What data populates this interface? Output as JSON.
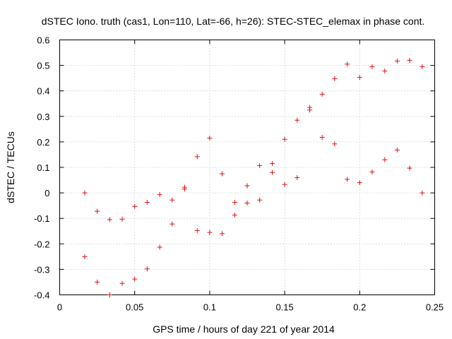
{
  "chart_data": {
    "type": "scatter",
    "title": "dSTEC Iono. truth (cas1, Lon=110, Lat=-66, h=26): STEC-STEC_elemax in phase cont.",
    "xlabel": "GPS time / hours of day 221 of year 2014",
    "ylabel": "dSTEC  / TECUs",
    "xlim": [
      0,
      0.25
    ],
    "ylim": [
      -0.4,
      0.6
    ],
    "xticks": [
      0,
      0.05,
      0.1,
      0.15,
      0.2,
      0.25
    ],
    "xtick_labels": [
      "0",
      "0.05",
      "0.1",
      "0.15",
      "0.2",
      "0.25"
    ],
    "yticks": [
      -0.4,
      -0.3,
      -0.2,
      -0.1,
      0,
      0.1,
      0.2,
      0.3,
      0.4,
      0.5,
      0.6
    ],
    "ytick_labels": [
      "-0.4",
      "-0.3",
      "-0.2",
      "-0.1",
      "0",
      "0.1",
      "0.2",
      "0.3",
      "0.4",
      "0.5",
      "0.6"
    ],
    "grid": true,
    "marker": "+",
    "marker_color": "#e01010",
    "points": [
      [
        0.0167,
        0.0
      ],
      [
        0.025,
        -0.072
      ],
      [
        0.0333,
        -0.105
      ],
      [
        0.0417,
        -0.103
      ],
      [
        0.05,
        -0.053
      ],
      [
        0.0583,
        -0.037
      ],
      [
        0.0667,
        -0.007
      ],
      [
        0.075,
        -0.028
      ],
      [
        0.0833,
        0.022
      ],
      [
        0.0833,
        0.015
      ],
      [
        0.0917,
        0.142
      ],
      [
        0.1,
        0.215
      ],
      [
        0.1083,
        0.075
      ],
      [
        0.1167,
        -0.037
      ],
      [
        0.125,
        0.028
      ],
      [
        0.1333,
        0.107
      ],
      [
        0.1417,
        0.115
      ],
      [
        0.15,
        0.21
      ],
      [
        0.1583,
        0.285
      ],
      [
        0.1667,
        0.335
      ],
      [
        0.1667,
        0.325
      ],
      [
        0.175,
        0.387
      ],
      [
        0.1833,
        0.448
      ],
      [
        0.1917,
        0.505
      ],
      [
        0.2,
        0.453
      ],
      [
        0.2083,
        0.495
      ],
      [
        0.2167,
        0.478
      ],
      [
        0.225,
        0.517
      ],
      [
        0.2333,
        0.52
      ],
      [
        0.2417,
        0.495
      ],
      [
        0.0167,
        -0.25
      ],
      [
        0.025,
        -0.35
      ],
      [
        0.0333,
        -0.4
      ],
      [
        0.0417,
        -0.355
      ],
      [
        0.05,
        -0.338
      ],
      [
        0.0583,
        -0.298
      ],
      [
        0.0667,
        -0.213
      ],
      [
        0.075,
        -0.122
      ],
      [
        0.0917,
        -0.148
      ],
      [
        0.1,
        -0.155
      ],
      [
        0.1083,
        -0.16
      ],
      [
        0.1167,
        -0.087
      ],
      [
        0.125,
        -0.04
      ],
      [
        0.1333,
        -0.028
      ],
      [
        0.1417,
        0.08
      ],
      [
        0.15,
        0.033
      ],
      [
        0.1583,
        0.06
      ],
      [
        0.175,
        0.218
      ],
      [
        0.1833,
        0.192
      ],
      [
        0.1917,
        0.053
      ],
      [
        0.2,
        0.04
      ],
      [
        0.2083,
        0.082
      ],
      [
        0.2167,
        0.13
      ],
      [
        0.225,
        0.168
      ],
      [
        0.2333,
        0.097
      ],
      [
        0.2417,
        0.0
      ]
    ]
  }
}
